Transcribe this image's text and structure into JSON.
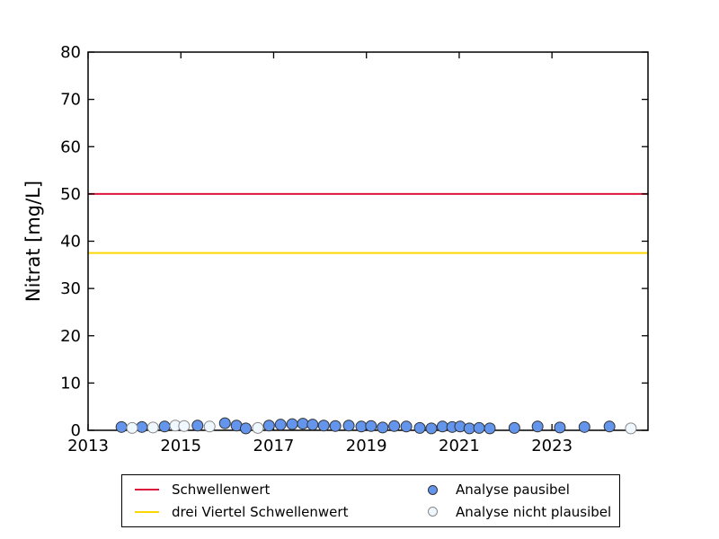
{
  "figure": {
    "background": "#ffffff",
    "axis_color": "#000000"
  },
  "chart_data": {
    "type": "scatter",
    "title": "",
    "xlabel": "",
    "ylabel": "Nitrat [mg/L]",
    "xlim": [
      2013,
      2025.07
    ],
    "ylim": [
      0,
      80
    ],
    "x_ticks": [
      2013,
      2015,
      2017,
      2019,
      2021,
      2023
    ],
    "y_ticks": [
      0,
      10,
      20,
      30,
      40,
      50,
      60,
      70,
      80
    ],
    "grid": false,
    "legend_position": "bottom-center",
    "hlines": [
      {
        "name": "Schwellenwert",
        "y": 50,
        "color": "#DC143C",
        "width": 2
      },
      {
        "name": "drei Viertel Schwellenwert",
        "y": 37.5,
        "color": "#FFD700",
        "width": 2
      }
    ],
    "series": [
      {
        "name": "Analyse pausibel",
        "marker": "filled-circle",
        "fill": "#6495ED",
        "edge": "#333333",
        "points": [
          [
            2013.72,
            0.7
          ],
          [
            2014.16,
            0.7
          ],
          [
            2014.65,
            0.8
          ],
          [
            2015.36,
            1.0
          ],
          [
            2015.95,
            1.5
          ],
          [
            2016.2,
            1.0
          ],
          [
            2016.4,
            0.4
          ],
          [
            2016.9,
            1.0
          ],
          [
            2017.15,
            1.2
          ],
          [
            2017.4,
            1.3
          ],
          [
            2017.63,
            1.4
          ],
          [
            2017.84,
            1.2
          ],
          [
            2018.08,
            1.0
          ],
          [
            2018.33,
            0.9
          ],
          [
            2018.62,
            1.0
          ],
          [
            2018.89,
            0.8
          ],
          [
            2019.1,
            0.9
          ],
          [
            2019.35,
            0.6
          ],
          [
            2019.6,
            0.9
          ],
          [
            2019.86,
            0.8
          ],
          [
            2020.15,
            0.5
          ],
          [
            2020.4,
            0.4
          ],
          [
            2020.64,
            0.8
          ],
          [
            2020.85,
            0.7
          ],
          [
            2021.02,
            0.8
          ],
          [
            2021.22,
            0.4
          ],
          [
            2021.43,
            0.5
          ],
          [
            2021.66,
            0.4
          ],
          [
            2022.19,
            0.5
          ],
          [
            2022.69,
            0.8
          ],
          [
            2023.17,
            0.6
          ],
          [
            2023.7,
            0.7
          ],
          [
            2024.24,
            0.8
          ]
        ]
      },
      {
        "name": "Analyse nicht plausibel",
        "marker": "open-circle",
        "fill": "#F0F8FF",
        "edge": "#888888",
        "points": [
          [
            2013.95,
            0.5
          ],
          [
            2014.4,
            0.6
          ],
          [
            2014.88,
            1.0
          ],
          [
            2015.07,
            0.9
          ],
          [
            2015.62,
            0.8
          ],
          [
            2016.66,
            0.5
          ],
          [
            2024.7,
            0.4
          ]
        ]
      }
    ],
    "legend": [
      {
        "label": "Schwellenwert",
        "swatch": "line",
        "color": "#DC143C",
        "edge": "#DC143C"
      },
      {
        "label": "drei Viertel Schwellenwert",
        "swatch": "line",
        "color": "#FFD700",
        "edge": "#FFD700"
      },
      {
        "label": "Analyse pausibel",
        "swatch": "circle",
        "color": "#6495ED",
        "edge": "#333333"
      },
      {
        "label": "Analyse nicht plausibel",
        "swatch": "circle",
        "color": "#F0F8FF",
        "edge": "#888888"
      }
    ]
  }
}
